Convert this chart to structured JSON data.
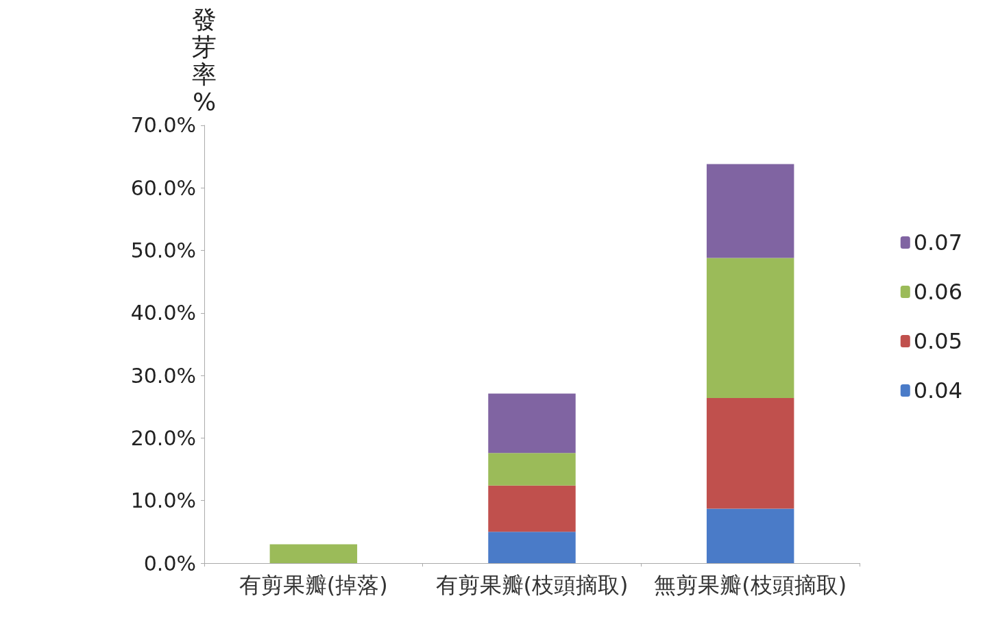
{
  "chart_data": {
    "type": "bar",
    "stacked": true,
    "ylabel": "發芽率%",
    "categories": [
      "有剪果瓣(掉落)",
      "有剪果瓣(枝頭摘取)",
      "無剪果瓣(枝頭摘取)"
    ],
    "series": [
      {
        "name": "0.04",
        "color": "#4a7bc8",
        "values": [
          null,
          5.0,
          8.7
        ]
      },
      {
        "name": "0.05",
        "color": "#c0504d",
        "values": [
          null,
          7.4,
          17.7
        ]
      },
      {
        "name": "0.06",
        "color": "#9bbb59",
        "values": [
          3.0,
          5.2,
          22.4
        ]
      },
      {
        "name": "0.07",
        "color": "#8064a2",
        "values": [
          null,
          9.5,
          15.0
        ]
      }
    ],
    "ylim": [
      0,
      70
    ],
    "yticks": [
      {
        "value": 0,
        "label": "0.0%"
      },
      {
        "value": 10,
        "label": "10.0%"
      },
      {
        "value": 20,
        "label": "20.0%"
      },
      {
        "value": 30,
        "label": "30.0%"
      },
      {
        "value": 40,
        "label": "40.0%"
      },
      {
        "value": 50,
        "label": "50.0%"
      },
      {
        "value": 60,
        "label": "60.0%"
      },
      {
        "value": 70,
        "label": "70.0%"
      }
    ],
    "grid": false,
    "legend": "right"
  }
}
